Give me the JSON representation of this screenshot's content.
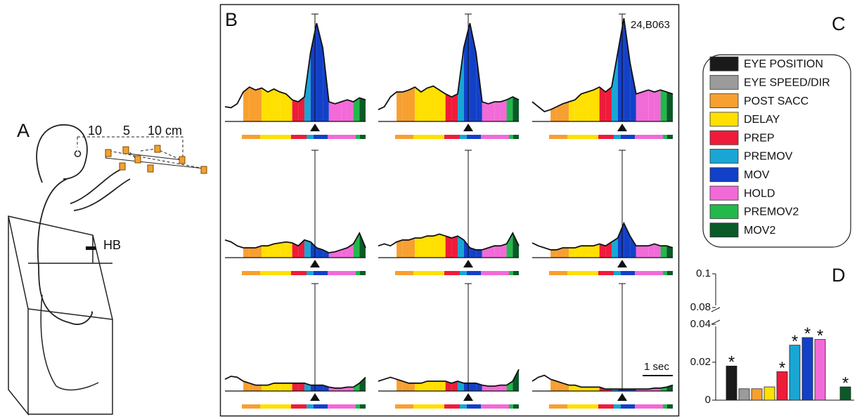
{
  "panel_labels": {
    "a": "A",
    "b": "B",
    "c": "C",
    "d": "D"
  },
  "setup": {
    "dimensions": [
      "10",
      "5",
      "10 cm"
    ],
    "hb": "HB"
  },
  "raster": {
    "cell_id": "24,B063",
    "scale_label": "1 sec",
    "traces": [
      [
        15,
        14,
        18,
        30,
        35,
        32,
        34,
        30,
        33,
        30,
        28,
        22,
        20,
        25,
        70,
        100,
        75,
        20,
        18,
        20,
        22,
        20,
        24,
        22
      ],
      [
        12,
        15,
        25,
        30,
        30,
        32,
        35,
        30,
        34,
        36,
        32,
        28,
        25,
        28,
        75,
        100,
        70,
        20,
        18,
        20,
        20,
        22,
        25,
        22
      ],
      [
        20,
        15,
        10,
        12,
        15,
        18,
        20,
        22,
        28,
        30,
        32,
        35,
        30,
        35,
        70,
        105,
        60,
        28,
        30,
        32,
        30,
        32,
        30,
        28
      ],
      [
        18,
        16,
        12,
        10,
        10,
        10,
        12,
        12,
        14,
        15,
        16,
        15,
        12,
        18,
        16,
        10,
        8,
        5,
        6,
        8,
        10,
        14,
        25,
        10
      ],
      [
        12,
        14,
        12,
        16,
        18,
        18,
        20,
        20,
        22,
        22,
        24,
        22,
        20,
        22,
        18,
        10,
        8,
        8,
        10,
        12,
        12,
        14,
        25,
        12
      ],
      [
        15,
        12,
        10,
        8,
        8,
        10,
        10,
        10,
        12,
        12,
        12,
        14,
        12,
        16,
        20,
        35,
        22,
        12,
        12,
        12,
        14,
        12,
        12,
        10
      ],
      [
        12,
        15,
        14,
        10,
        8,
        6,
        6,
        6,
        8,
        8,
        8,
        8,
        8,
        8,
        6,
        6,
        6,
        4,
        3,
        3,
        4,
        4,
        8,
        14
      ],
      [
        10,
        12,
        14,
        12,
        10,
        8,
        8,
        8,
        10,
        10,
        10,
        10,
        8,
        10,
        8,
        8,
        8,
        6,
        5,
        5,
        6,
        6,
        10,
        22
      ],
      [
        10,
        14,
        16,
        12,
        10,
        8,
        6,
        6,
        4,
        4,
        4,
        4,
        2,
        2,
        2,
        2,
        2,
        2,
        2,
        2,
        3,
        3,
        4,
        6
      ]
    ]
  },
  "chart_data": {
    "type": "bar",
    "legend": [
      "EYE POSITION",
      "EYE SPEED/DIR",
      "POST SACC",
      "DELAY",
      "PREP",
      "PREMOV",
      "MOV",
      "HOLD",
      "PREMOV2",
      "MOV2"
    ],
    "colors": [
      "#1a1a1a",
      "#9b9b9b",
      "#f7a030",
      "#ffe000",
      "#ee1c3a",
      "#1aa6d4",
      "#1240c8",
      "#f26ad8",
      "#22b84a",
      "#0a5a28"
    ],
    "categories": [
      null,
      null,
      null,
      null,
      null,
      null,
      null,
      null,
      null,
      null
    ],
    "values": [
      0.018,
      0.006,
      0.006,
      0.007,
      0.015,
      0.029,
      0.033,
      0.032,
      null,
      0.007
    ],
    "markers": [
      "*",
      null,
      null,
      null,
      "*",
      "*",
      "*",
      "*",
      null,
      "*"
    ],
    "ylim": [
      0,
      0.1
    ],
    "yticks": [
      0,
      0.02,
      0.04,
      0.08,
      0.1
    ],
    "axis_break": [
      0.04,
      0.08
    ]
  }
}
